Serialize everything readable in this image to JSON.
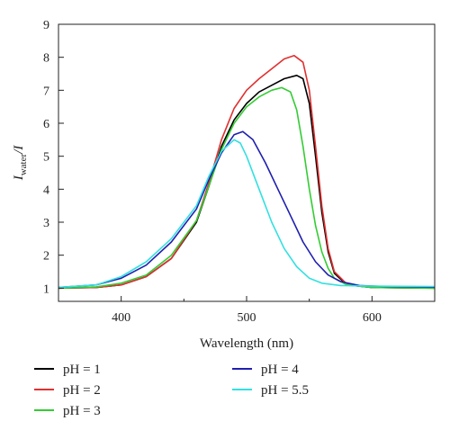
{
  "chart_data": {
    "type": "line",
    "xlabel": "Wavelength (nm)",
    "ylabel_main": "I",
    "ylabel_sub": "water",
    "ylabel_tail": "/I",
    "xlim": [
      350,
      650
    ],
    "ylim": [
      0.6,
      9
    ],
    "xticks": [
      400,
      500,
      600
    ],
    "yticks": [
      1,
      2,
      3,
      4,
      5,
      6,
      7,
      8,
      9
    ],
    "grid": false,
    "legend_position": "bottom",
    "series": [
      {
        "name": "pH = 1",
        "color": "#000000",
        "points": [
          [
            350,
            1.0
          ],
          [
            380,
            1.02
          ],
          [
            400,
            1.1
          ],
          [
            420,
            1.35
          ],
          [
            440,
            1.9
          ],
          [
            460,
            3.0
          ],
          [
            470,
            4.1
          ],
          [
            480,
            5.3
          ],
          [
            490,
            6.1
          ],
          [
            500,
            6.6
          ],
          [
            510,
            6.95
          ],
          [
            520,
            7.15
          ],
          [
            530,
            7.35
          ],
          [
            540,
            7.45
          ],
          [
            545,
            7.35
          ],
          [
            550,
            6.6
          ],
          [
            555,
            5.0
          ],
          [
            560,
            3.3
          ],
          [
            565,
            2.1
          ],
          [
            570,
            1.45
          ],
          [
            580,
            1.1
          ],
          [
            600,
            1.02
          ],
          [
            650,
            1.0
          ]
        ]
      },
      {
        "name": "pH = 2",
        "color": "#e03030",
        "points": [
          [
            350,
            1.0
          ],
          [
            380,
            1.02
          ],
          [
            400,
            1.1
          ],
          [
            420,
            1.35
          ],
          [
            440,
            1.9
          ],
          [
            460,
            3.05
          ],
          [
            470,
            4.2
          ],
          [
            480,
            5.5
          ],
          [
            490,
            6.45
          ],
          [
            500,
            7.0
          ],
          [
            510,
            7.35
          ],
          [
            520,
            7.65
          ],
          [
            530,
            7.95
          ],
          [
            538,
            8.05
          ],
          [
            545,
            7.85
          ],
          [
            550,
            7.0
          ],
          [
            555,
            5.3
          ],
          [
            560,
            3.5
          ],
          [
            565,
            2.2
          ],
          [
            570,
            1.5
          ],
          [
            580,
            1.12
          ],
          [
            600,
            1.02
          ],
          [
            650,
            1.0
          ]
        ]
      },
      {
        "name": "pH = 3",
        "color": "#33cc33",
        "points": [
          [
            350,
            1.0
          ],
          [
            380,
            1.04
          ],
          [
            400,
            1.15
          ],
          [
            420,
            1.4
          ],
          [
            440,
            2.0
          ],
          [
            460,
            3.05
          ],
          [
            470,
            4.1
          ],
          [
            480,
            5.2
          ],
          [
            490,
            6.0
          ],
          [
            500,
            6.5
          ],
          [
            510,
            6.8
          ],
          [
            520,
            7.0
          ],
          [
            528,
            7.08
          ],
          [
            535,
            6.95
          ],
          [
            540,
            6.4
          ],
          [
            545,
            5.3
          ],
          [
            550,
            4.0
          ],
          [
            555,
            2.9
          ],
          [
            560,
            2.1
          ],
          [
            565,
            1.6
          ],
          [
            570,
            1.3
          ],
          [
            580,
            1.1
          ],
          [
            600,
            1.02
          ],
          [
            650,
            1.0
          ]
        ]
      },
      {
        "name": "pH = 4",
        "color": "#1f1fb0",
        "points": [
          [
            350,
            1.02
          ],
          [
            380,
            1.1
          ],
          [
            400,
            1.3
          ],
          [
            420,
            1.7
          ],
          [
            440,
            2.4
          ],
          [
            460,
            3.4
          ],
          [
            470,
            4.3
          ],
          [
            480,
            5.1
          ],
          [
            490,
            5.65
          ],
          [
            497,
            5.75
          ],
          [
            505,
            5.5
          ],
          [
            515,
            4.8
          ],
          [
            525,
            4.0
          ],
          [
            535,
            3.2
          ],
          [
            545,
            2.4
          ],
          [
            555,
            1.8
          ],
          [
            565,
            1.4
          ],
          [
            575,
            1.2
          ],
          [
            590,
            1.08
          ],
          [
            610,
            1.05
          ],
          [
            650,
            1.03
          ]
        ]
      },
      {
        "name": "pH = 5.5",
        "color": "#33e0e0",
        "points": [
          [
            350,
            1.02
          ],
          [
            380,
            1.1
          ],
          [
            400,
            1.35
          ],
          [
            420,
            1.8
          ],
          [
            440,
            2.5
          ],
          [
            460,
            3.5
          ],
          [
            470,
            4.4
          ],
          [
            480,
            5.15
          ],
          [
            490,
            5.5
          ],
          [
            495,
            5.4
          ],
          [
            500,
            5.0
          ],
          [
            510,
            4.0
          ],
          [
            520,
            3.0
          ],
          [
            530,
            2.2
          ],
          [
            540,
            1.65
          ],
          [
            550,
            1.3
          ],
          [
            560,
            1.15
          ],
          [
            575,
            1.08
          ],
          [
            600,
            1.06
          ],
          [
            650,
            1.05
          ]
        ]
      }
    ]
  }
}
